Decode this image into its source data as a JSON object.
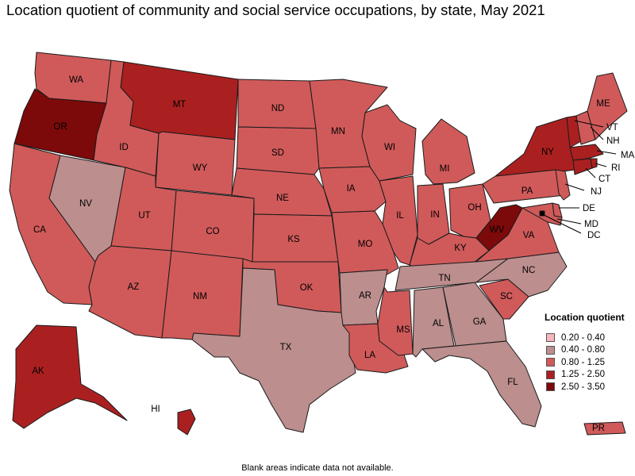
{
  "title": "Location quotient of community and social service occupations, by state, May 2021",
  "footnote": "Blank areas indicate data not available.",
  "legend": {
    "title": "Location quotient",
    "items": [
      {
        "label": "0.20 - 0.40",
        "color": "#f4b8bc"
      },
      {
        "label": "0.40 - 0.80",
        "color": "#bc8e8e"
      },
      {
        "label": "0.80 - 1.25",
        "color": "#d05a5a"
      },
      {
        "label": "1.25 - 2.50",
        "color": "#aa2020"
      },
      {
        "label": "2.50 - 3.50",
        "color": "#7c0a0a"
      }
    ]
  },
  "chart_data": {
    "type": "choropleth",
    "metric": "Location quotient",
    "bins": [
      "0.20 - 0.40",
      "0.40 - 0.80",
      "0.80 - 1.25",
      "1.25 - 2.50",
      "2.50 - 3.50"
    ],
    "states": [
      {
        "abbr": "WA",
        "bin": "0.80 - 1.25"
      },
      {
        "abbr": "OR",
        "bin": "2.50 - 3.50"
      },
      {
        "abbr": "CA",
        "bin": "0.80 - 1.25"
      },
      {
        "abbr": "NV",
        "bin": "0.40 - 0.80"
      },
      {
        "abbr": "ID",
        "bin": "0.80 - 1.25"
      },
      {
        "abbr": "MT",
        "bin": "1.25 - 2.50"
      },
      {
        "abbr": "WY",
        "bin": "0.80 - 1.25"
      },
      {
        "abbr": "UT",
        "bin": "0.80 - 1.25"
      },
      {
        "abbr": "AZ",
        "bin": "0.80 - 1.25"
      },
      {
        "abbr": "CO",
        "bin": "0.80 - 1.25"
      },
      {
        "abbr": "NM",
        "bin": "0.80 - 1.25"
      },
      {
        "abbr": "ND",
        "bin": "0.80 - 1.25"
      },
      {
        "abbr": "SD",
        "bin": "0.80 - 1.25"
      },
      {
        "abbr": "NE",
        "bin": "0.80 - 1.25"
      },
      {
        "abbr": "KS",
        "bin": "0.80 - 1.25"
      },
      {
        "abbr": "OK",
        "bin": "0.80 - 1.25"
      },
      {
        "abbr": "TX",
        "bin": "0.40 - 0.80"
      },
      {
        "abbr": "MN",
        "bin": "0.80 - 1.25"
      },
      {
        "abbr": "IA",
        "bin": "0.80 - 1.25"
      },
      {
        "abbr": "MO",
        "bin": "0.80 - 1.25"
      },
      {
        "abbr": "AR",
        "bin": "0.40 - 0.80"
      },
      {
        "abbr": "LA",
        "bin": "0.80 - 1.25"
      },
      {
        "abbr": "WI",
        "bin": "0.80 - 1.25"
      },
      {
        "abbr": "IL",
        "bin": "0.80 - 1.25"
      },
      {
        "abbr": "MI",
        "bin": "0.80 - 1.25"
      },
      {
        "abbr": "IN",
        "bin": "0.80 - 1.25"
      },
      {
        "abbr": "OH",
        "bin": "0.80 - 1.25"
      },
      {
        "abbr": "KY",
        "bin": "0.80 - 1.25"
      },
      {
        "abbr": "TN",
        "bin": "0.40 - 0.80"
      },
      {
        "abbr": "MS",
        "bin": "0.80 - 1.25"
      },
      {
        "abbr": "AL",
        "bin": "0.40 - 0.80"
      },
      {
        "abbr": "GA",
        "bin": "0.40 - 0.80"
      },
      {
        "abbr": "FL",
        "bin": "0.40 - 0.80"
      },
      {
        "abbr": "SC",
        "bin": "0.80 - 1.25"
      },
      {
        "abbr": "NC",
        "bin": "0.40 - 0.80"
      },
      {
        "abbr": "VA",
        "bin": "0.80 - 1.25"
      },
      {
        "abbr": "WV",
        "bin": "2.50 - 3.50"
      },
      {
        "abbr": "PA",
        "bin": "0.80 - 1.25"
      },
      {
        "abbr": "NY",
        "bin": "1.25 - 2.50"
      },
      {
        "abbr": "VT",
        "bin": "1.25 - 2.50"
      },
      {
        "abbr": "NH",
        "bin": "0.80 - 1.25"
      },
      {
        "abbr": "ME",
        "bin": "0.80 - 1.25"
      },
      {
        "abbr": "MA",
        "bin": "1.25 - 2.50"
      },
      {
        "abbr": "RI",
        "bin": "1.25 - 2.50"
      },
      {
        "abbr": "CT",
        "bin": "1.25 - 2.50"
      },
      {
        "abbr": "NJ",
        "bin": "0.80 - 1.25"
      },
      {
        "abbr": "DE",
        "bin": "0.80 - 1.25"
      },
      {
        "abbr": "MD",
        "bin": "0.80 - 1.25"
      },
      {
        "abbr": "DC",
        "bin": "2.50 - 3.50"
      },
      {
        "abbr": "AK",
        "bin": "1.25 - 2.50"
      },
      {
        "abbr": "HI",
        "bin": "1.25 - 2.50"
      },
      {
        "abbr": "PR",
        "bin": "0.80 - 1.25"
      }
    ]
  }
}
